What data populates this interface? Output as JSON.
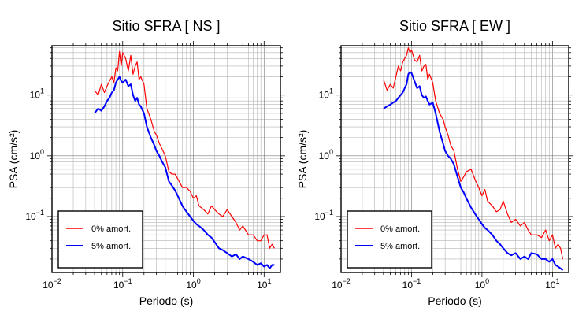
{
  "chart_data": [
    {
      "type": "line",
      "title": "Sitio SFRA [ NS ]",
      "xlabel": "Periodo (s)",
      "ylabel": "PSA (cm/s²)",
      "x_scale": "log",
      "y_scale": "log",
      "xlim": [
        0.01,
        17
      ],
      "ylim": [
        0.012,
        65
      ],
      "x_ticks": [
        {
          "value": 0.01,
          "base": "10",
          "exp": "−2"
        },
        {
          "value": 0.1,
          "base": "10",
          "exp": "−1"
        },
        {
          "value": 1,
          "base": "10",
          "exp": "0"
        },
        {
          "value": 10,
          "base": "10",
          "exp": "1"
        }
      ],
      "y_ticks": [
        {
          "value": 0.1,
          "base": "10",
          "exp": "−1"
        },
        {
          "value": 1,
          "base": "10",
          "exp": "0"
        },
        {
          "value": 10,
          "base": "10",
          "exp": "1"
        }
      ],
      "grid": true,
      "legend_position": "bottom-left",
      "series": [
        {
          "name": "0% amort.",
          "color": "#ff0000",
          "x": [
            0.04,
            0.045,
            0.05,
            0.055,
            0.06,
            0.065,
            0.07,
            0.075,
            0.08,
            0.085,
            0.09,
            0.095,
            0.1,
            0.11,
            0.12,
            0.13,
            0.14,
            0.15,
            0.16,
            0.17,
            0.18,
            0.2,
            0.22,
            0.25,
            0.28,
            0.3,
            0.33,
            0.36,
            0.4,
            0.45,
            0.5,
            0.55,
            0.6,
            0.7,
            0.8,
            0.9,
            1.0,
            1.1,
            1.2,
            1.4,
            1.6,
            1.8,
            2.0,
            2.3,
            2.6,
            3.0,
            3.5,
            4.0,
            4.5,
            5.0,
            6.0,
            7.0,
            8.0,
            9.0,
            10.0,
            11.0,
            12.0,
            13.0,
            14.0
          ],
          "values": [
            12,
            10,
            15,
            11,
            14,
            17,
            20,
            16,
            28,
            25,
            52,
            30,
            50,
            40,
            25,
            45,
            22,
            30,
            35,
            18,
            20,
            15,
            6,
            4,
            2.5,
            2.2,
            1.6,
            1.3,
            1.0,
            0.55,
            0.5,
            0.5,
            0.42,
            0.3,
            0.3,
            0.26,
            0.2,
            0.22,
            0.15,
            0.13,
            0.11,
            0.15,
            0.13,
            0.11,
            0.1,
            0.13,
            0.1,
            0.08,
            0.06,
            0.07,
            0.05,
            0.05,
            0.04,
            0.04,
            0.05,
            0.05,
            0.03,
            0.035,
            0.03
          ]
        },
        {
          "name": "5% amort.",
          "color": "#0000ff",
          "x": [
            0.04,
            0.045,
            0.05,
            0.055,
            0.06,
            0.065,
            0.07,
            0.075,
            0.08,
            0.085,
            0.09,
            0.095,
            0.1,
            0.11,
            0.12,
            0.13,
            0.14,
            0.15,
            0.16,
            0.17,
            0.18,
            0.2,
            0.22,
            0.25,
            0.28,
            0.3,
            0.33,
            0.36,
            0.4,
            0.45,
            0.5,
            0.55,
            0.6,
            0.7,
            0.8,
            0.9,
            1.0,
            1.1,
            1.2,
            1.4,
            1.6,
            1.8,
            2.0,
            2.3,
            2.6,
            3.0,
            3.5,
            4.0,
            4.5,
            5.0,
            6.0,
            7.0,
            8.0,
            9.0,
            10.0,
            11.0,
            12.0,
            13.0,
            14.0
          ],
          "values": [
            5,
            6,
            5.5,
            6.5,
            8,
            9,
            11,
            12,
            16,
            18,
            20,
            17,
            16,
            18,
            14,
            15,
            10,
            8,
            9,
            7,
            6.5,
            5,
            3,
            2,
            1.5,
            1.2,
            1.0,
            0.8,
            0.65,
            0.38,
            0.32,
            0.27,
            0.22,
            0.15,
            0.12,
            0.1,
            0.085,
            0.075,
            0.07,
            0.06,
            0.05,
            0.045,
            0.038,
            0.03,
            0.028,
            0.025,
            0.022,
            0.024,
            0.02,
            0.022,
            0.02,
            0.018,
            0.016,
            0.017,
            0.015,
            0.016,
            0.014,
            0.016,
            0.016
          ]
        }
      ]
    },
    {
      "type": "line",
      "title": "Sitio SFRA [ EW ]",
      "xlabel": "Periodo (s)",
      "ylabel": "PSA (cm/s²)",
      "x_scale": "log",
      "y_scale": "log",
      "xlim": [
        0.01,
        17
      ],
      "ylim": [
        0.012,
        65
      ],
      "x_ticks": [
        {
          "value": 0.01,
          "base": "10",
          "exp": "−2"
        },
        {
          "value": 0.1,
          "base": "10",
          "exp": "−1"
        },
        {
          "value": 1,
          "base": "10",
          "exp": "0"
        },
        {
          "value": 10,
          "base": "10",
          "exp": "1"
        }
      ],
      "y_ticks": [
        {
          "value": 0.1,
          "base": "10",
          "exp": "−1"
        },
        {
          "value": 1,
          "base": "10",
          "exp": "0"
        },
        {
          "value": 10,
          "base": "10",
          "exp": "1"
        }
      ],
      "grid": true,
      "legend_position": "bottom-left",
      "series": [
        {
          "name": "0% amort.",
          "color": "#ff0000",
          "x": [
            0.04,
            0.045,
            0.05,
            0.055,
            0.06,
            0.065,
            0.07,
            0.075,
            0.08,
            0.085,
            0.09,
            0.095,
            0.1,
            0.11,
            0.12,
            0.13,
            0.14,
            0.15,
            0.16,
            0.17,
            0.18,
            0.2,
            0.22,
            0.25,
            0.28,
            0.3,
            0.33,
            0.36,
            0.4,
            0.45,
            0.5,
            0.55,
            0.6,
            0.7,
            0.8,
            0.9,
            1.0,
            1.1,
            1.2,
            1.4,
            1.6,
            1.8,
            2.0,
            2.3,
            2.6,
            3.0,
            3.5,
            4.0,
            4.5,
            5.0,
            6.0,
            7.0,
            8.0,
            9.0,
            10.0,
            11.0,
            12.0,
            13.0,
            14.0
          ],
          "values": [
            18,
            12,
            15,
            13,
            20,
            30,
            25,
            35,
            40,
            45,
            60,
            50,
            55,
            38,
            35,
            45,
            25,
            30,
            32,
            18,
            22,
            16,
            8,
            5,
            4,
            3,
            2.2,
            1.5,
            1.2,
            0.6,
            0.38,
            0.45,
            0.55,
            0.6,
            0.4,
            0.3,
            0.22,
            0.28,
            0.18,
            0.15,
            0.12,
            0.13,
            0.18,
            0.11,
            0.08,
            0.09,
            0.07,
            0.08,
            0.06,
            0.05,
            0.05,
            0.045,
            0.06,
            0.04,
            0.05,
            0.03,
            0.035,
            0.03,
            0.02
          ]
        },
        {
          "name": "5% amort.",
          "color": "#0000ff",
          "x": [
            0.04,
            0.045,
            0.05,
            0.055,
            0.06,
            0.065,
            0.07,
            0.075,
            0.08,
            0.085,
            0.09,
            0.095,
            0.1,
            0.11,
            0.12,
            0.13,
            0.14,
            0.15,
            0.16,
            0.17,
            0.18,
            0.2,
            0.22,
            0.25,
            0.28,
            0.3,
            0.33,
            0.36,
            0.4,
            0.45,
            0.5,
            0.55,
            0.6,
            0.7,
            0.8,
            0.9,
            1.0,
            1.1,
            1.2,
            1.4,
            1.6,
            1.8,
            2.0,
            2.3,
            2.6,
            3.0,
            3.5,
            4.0,
            4.5,
            5.0,
            6.0,
            7.0,
            8.0,
            9.0,
            10.0,
            11.0,
            12.0,
            13.0,
            14.0
          ],
          "values": [
            6,
            6.5,
            7,
            7.5,
            8,
            9,
            10,
            11,
            13,
            15,
            22,
            24,
            23,
            17,
            13,
            14,
            10,
            9,
            9.5,
            8,
            7,
            7.5,
            5,
            2.5,
            1.6,
            1.2,
            1.0,
            0.9,
            0.72,
            0.45,
            0.3,
            0.25,
            0.2,
            0.14,
            0.11,
            0.09,
            0.075,
            0.065,
            0.06,
            0.05,
            0.04,
            0.035,
            0.03,
            0.025,
            0.023,
            0.025,
            0.02,
            0.022,
            0.02,
            0.025,
            0.024,
            0.02,
            0.02,
            0.018,
            0.02,
            0.016,
            0.015,
            0.014,
            0.013
          ]
        }
      ]
    }
  ]
}
